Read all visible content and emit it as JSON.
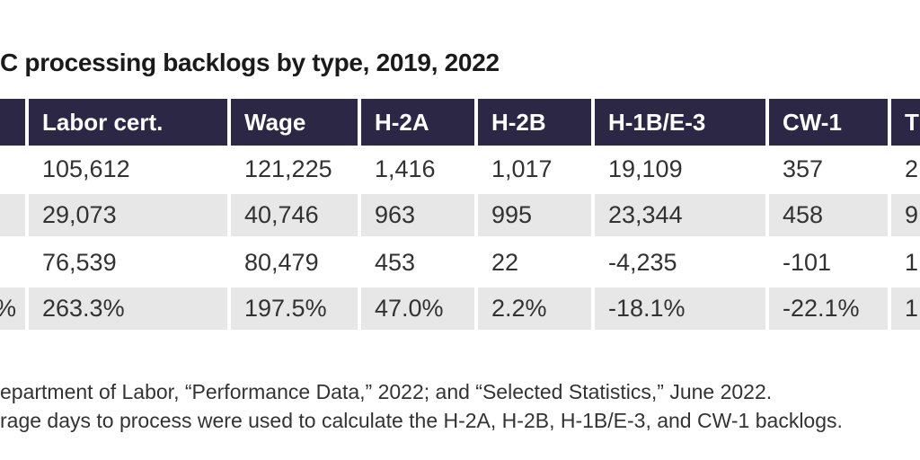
{
  "title": "C processing backlogs by type, 2019, 2022",
  "chart_data": {
    "type": "table",
    "title": "C processing backlogs by type, 2019, 2022",
    "columns": [
      "",
      "Labor cert.",
      "Wage",
      "H-2A",
      "H-2B",
      "H-1B/E-3",
      "CW-1",
      "T"
    ],
    "rows": [
      {
        "label": "",
        "values": [
          "105,612",
          "121,225",
          "1,416",
          "1,017",
          "19,109",
          "357",
          "2"
        ]
      },
      {
        "label": "",
        "values": [
          "29,073",
          "40,746",
          "963",
          "995",
          "23,344",
          "458",
          "9"
        ]
      },
      {
        "label": "",
        "values": [
          "76,539",
          "80,479",
          "453",
          "22",
          "-4,235",
          "-101",
          "1"
        ]
      },
      {
        "label": "%",
        "values": [
          "263.3%",
          "197.5%",
          "47.0%",
          "2.2%",
          "-18.1%",
          "-22.1%",
          "1"
        ]
      }
    ],
    "layout_hints": {
      "header_style": "dark navy band, white bold text, left-aligned",
      "row_striping": "white / light gray alternating starting white",
      "cropped_edges": "table and title cut off at left and right image edges"
    }
  },
  "footer": {
    "line1": "epartment of Labor, “Performance Data,” 2022; and “Selected Statistics,” June 2022.",
    "line2": "rage days to process were used to calculate the H-2A, H-2B, H-1B/E-3, and CW-1 backlogs."
  },
  "colors": {
    "header_bg": "#2b2744",
    "header_text": "#ffffff",
    "row_alt_bg": "#e8e7e7",
    "title_color": "#1a1a1a",
    "body_text": "#323232",
    "footer_text": "#333333",
    "page_bg": "#ffffff"
  }
}
